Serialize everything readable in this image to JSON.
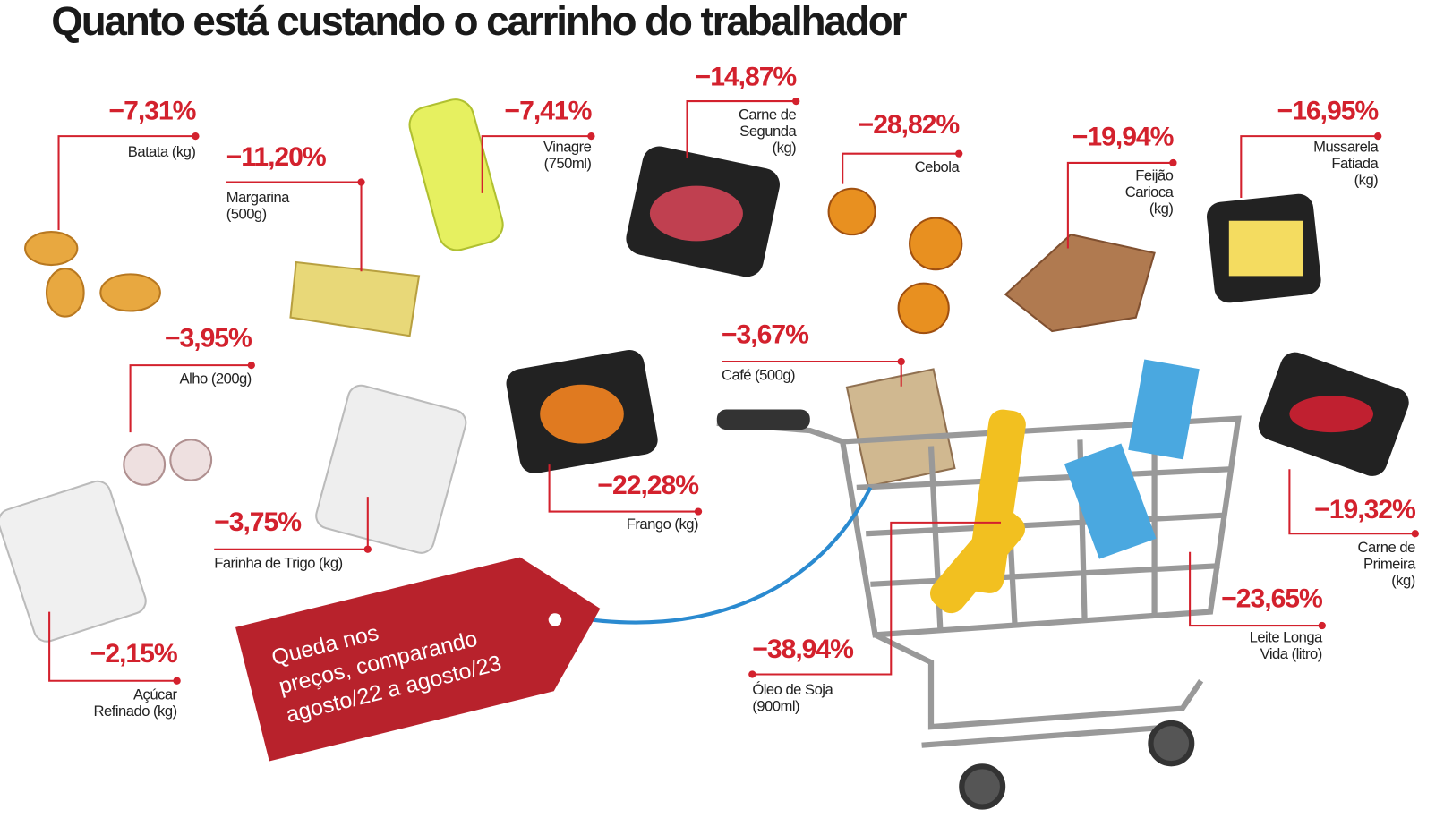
{
  "title": "Quanto está custando o carrinho do trabalhador",
  "tag_lines": [
    "Queda nos",
    "preços, comparando",
    "agosto/22  a  agosto/23"
  ],
  "items": [
    {
      "change": "−7,31%",
      "name_lines": [
        "Batata  (kg)"
      ]
    },
    {
      "change": "−11,20%",
      "name_lines": [
        "Margarina",
        "(500g)"
      ]
    },
    {
      "change": "−7,41%",
      "name_lines": [
        "Vinagre",
        "(750ml)"
      ]
    },
    {
      "change": "−14,87%",
      "name_lines": [
        "Carne de",
        "Segunda",
        "(kg)"
      ]
    },
    {
      "change": "−28,82%",
      "name_lines": [
        "Cebola"
      ]
    },
    {
      "change": "−19,94%",
      "name_lines": [
        "Feijão",
        "Carioca",
        "(kg)"
      ]
    },
    {
      "change": "−16,95%",
      "name_lines": [
        "Mussarela",
        "Fatiada",
        "(kg)"
      ]
    },
    {
      "change": "−3,95%",
      "name_lines": [
        "Alho (200g)"
      ]
    },
    {
      "change": "−3,75%",
      "name_lines": [
        "Farinha de Trigo (kg)"
      ]
    },
    {
      "change": "−22,28%",
      "name_lines": [
        "Frango (kg)"
      ]
    },
    {
      "change": "−3,67%",
      "name_lines": [
        "Café (500g)"
      ]
    },
    {
      "change": "−2,15%",
      "name_lines": [
        "Açúcar",
        "Refinado (kg)"
      ]
    },
    {
      "change": "−38,94%",
      "name_lines": [
        "Óleo de Soja",
        "(900ml)"
      ]
    },
    {
      "change": "−23,65%",
      "name_lines": [
        "Leite Longa",
        "Vida (litro)"
      ]
    },
    {
      "change": "−19,32%",
      "name_lines": [
        "Carne de",
        "Primeira",
        "(kg)"
      ]
    }
  ]
}
